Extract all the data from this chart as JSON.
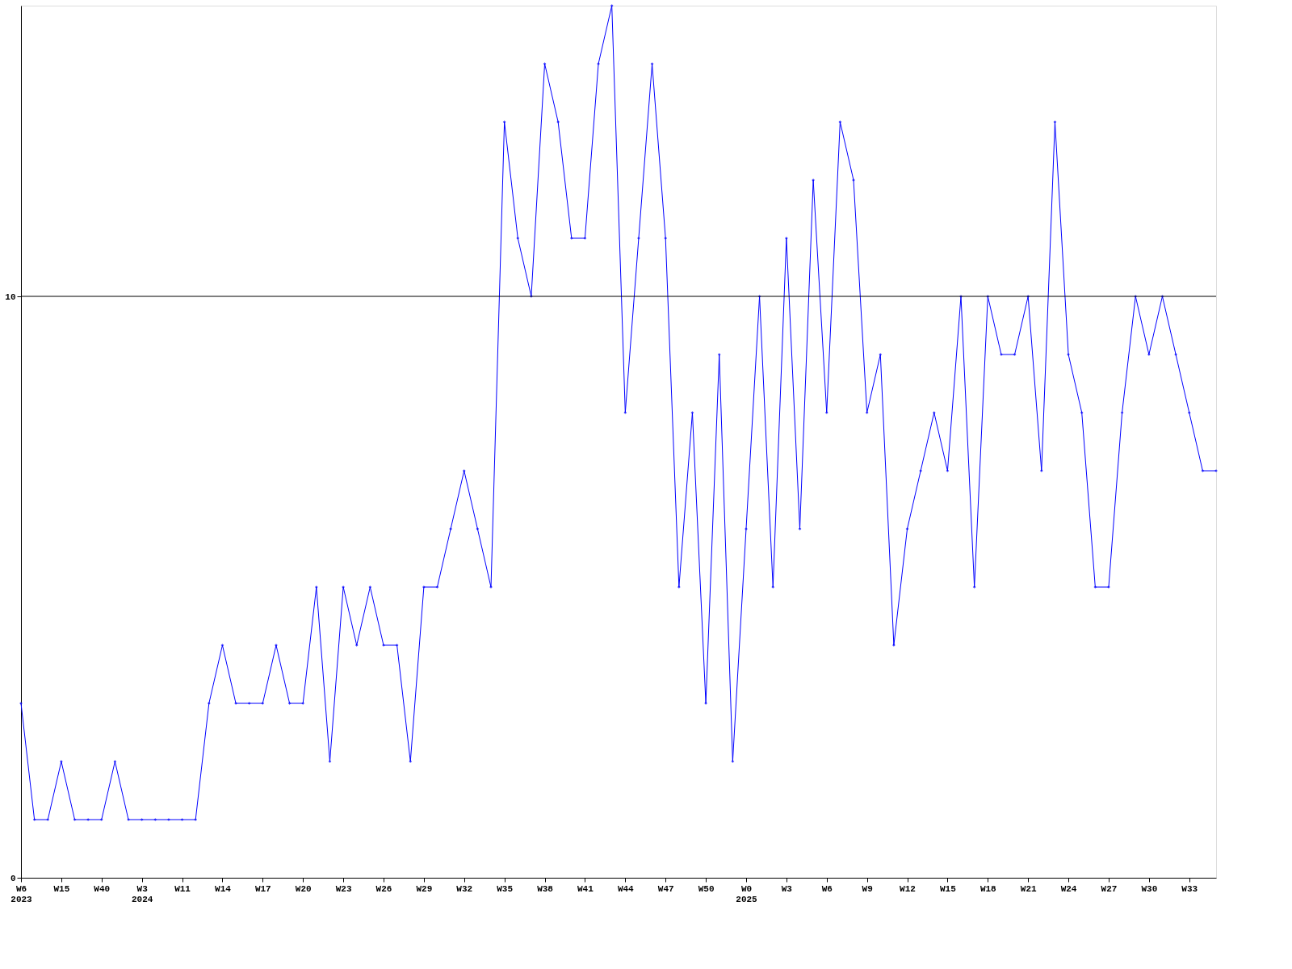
{
  "chart_data": {
    "type": "line",
    "categories": [
      "W6\n2023",
      null,
      null,
      "W15",
      null,
      null,
      "W40",
      null,
      null,
      "W3\n2024",
      null,
      null,
      "W11",
      null,
      null,
      "W14",
      null,
      null,
      "W17",
      null,
      null,
      "W20",
      null,
      null,
      "W23",
      null,
      null,
      "W26",
      null,
      null,
      "W29",
      null,
      null,
      "W32",
      null,
      null,
      "W35",
      null,
      null,
      "W38",
      null,
      null,
      "W41",
      null,
      null,
      "W44",
      null,
      null,
      "W47",
      null,
      null,
      "W50",
      null,
      null,
      "W0\n2025",
      null,
      null,
      "W3",
      null,
      null,
      "W6",
      null,
      null,
      "W9",
      null,
      null,
      "W12",
      null,
      null,
      "W15",
      null,
      null,
      "W18",
      null,
      null,
      "W21",
      null,
      null,
      "W24",
      null,
      null,
      "W27",
      null,
      null,
      "W30",
      null,
      null,
      "W33",
      null,
      null
    ],
    "series": [
      {
        "color": "#0000ff",
        "values": [
          3,
          1,
          1,
          2,
          1,
          1,
          1,
          2,
          1,
          1,
          1,
          1,
          1,
          1,
          3,
          4,
          3,
          3,
          3,
          4,
          3,
          3,
          5,
          2,
          5,
          4,
          5,
          4,
          4,
          2,
          5,
          5,
          6,
          7,
          6,
          5,
          13,
          11,
          10,
          14,
          13,
          11,
          11,
          14,
          15,
          8,
          11,
          14,
          11,
          5,
          8,
          3,
          9,
          2,
          6,
          10,
          5,
          11,
          6,
          12,
          8,
          13,
          12,
          8,
          9,
          4,
          6,
          7,
          8,
          7,
          10,
          5,
          10,
          9,
          9,
          10,
          7,
          13,
          9,
          8,
          5,
          5,
          8,
          10,
          9,
          10,
          9,
          8,
          7,
          7
        ]
      }
    ],
    "ylim": [
      0,
      15
    ],
    "yticks": [
      0,
      10
    ],
    "ref_lines": [
      {
        "axis": "y",
        "value": 10,
        "color": "#000000"
      }
    ],
    "marker": "diamond",
    "line_style": "solid",
    "grid": false
  }
}
